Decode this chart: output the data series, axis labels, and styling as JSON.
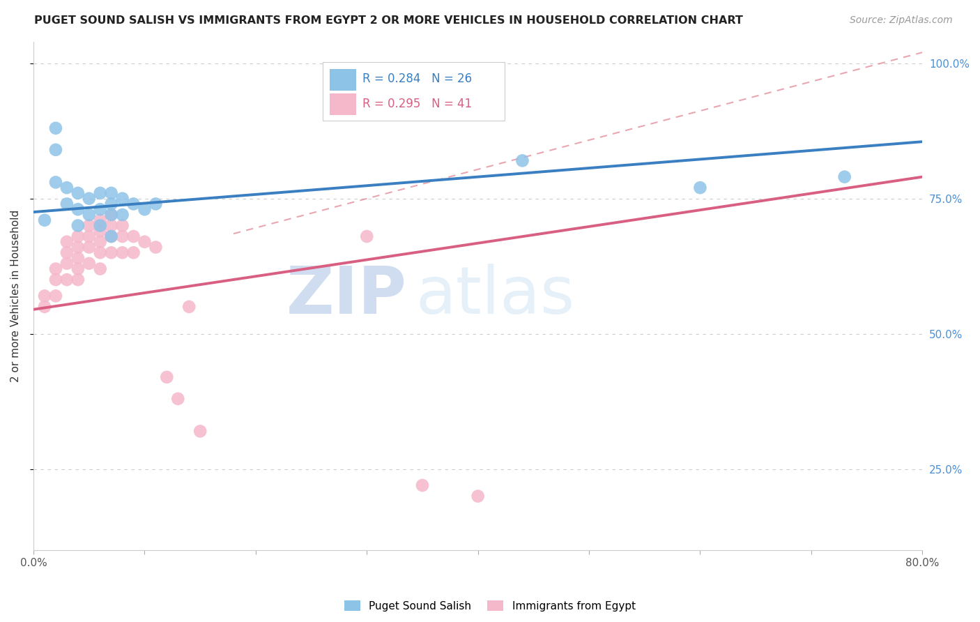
{
  "title": "PUGET SOUND SALISH VS IMMIGRANTS FROM EGYPT 2 OR MORE VEHICLES IN HOUSEHOLD CORRELATION CHART",
  "source": "Source: ZipAtlas.com",
  "ylabel": "2 or more Vehicles in Household",
  "xlim": [
    0.0,
    0.8
  ],
  "ylim": [
    0.1,
    1.04
  ],
  "xticks": [
    0.0,
    0.1,
    0.2,
    0.3,
    0.4,
    0.5,
    0.6,
    0.7,
    0.8
  ],
  "xticklabels": [
    "0.0%",
    "",
    "",
    "",
    "",
    "",
    "",
    "",
    "80.0%"
  ],
  "yticks": [
    0.25,
    0.5,
    0.75,
    1.0
  ],
  "yticklabels": [
    "25.0%",
    "50.0%",
    "75.0%",
    "100.0%"
  ],
  "blue_R": 0.284,
  "blue_N": 26,
  "pink_R": 0.295,
  "pink_N": 41,
  "blue_color": "#8ec3e8",
  "pink_color": "#f5b8cb",
  "blue_line_color": "#3a7fc1",
  "pink_line_color": "#d95f82",
  "dash_line_color": "#e08090",
  "watermark_zip": "ZIP",
  "watermark_atlas": "atlas",
  "blue_points_x": [
    0.01,
    0.02,
    0.02,
    0.02,
    0.03,
    0.03,
    0.04,
    0.04,
    0.04,
    0.05,
    0.05,
    0.06,
    0.06,
    0.06,
    0.07,
    0.07,
    0.07,
    0.07,
    0.08,
    0.08,
    0.09,
    0.1,
    0.11,
    0.44,
    0.6,
    0.73
  ],
  "blue_points_y": [
    0.71,
    0.88,
    0.84,
    0.78,
    0.77,
    0.74,
    0.76,
    0.73,
    0.7,
    0.75,
    0.72,
    0.76,
    0.73,
    0.7,
    0.76,
    0.74,
    0.72,
    0.68,
    0.75,
    0.72,
    0.74,
    0.73,
    0.74,
    0.82,
    0.77,
    0.79
  ],
  "pink_points_x": [
    0.01,
    0.01,
    0.02,
    0.02,
    0.02,
    0.03,
    0.03,
    0.03,
    0.03,
    0.04,
    0.04,
    0.04,
    0.04,
    0.04,
    0.05,
    0.05,
    0.05,
    0.05,
    0.06,
    0.06,
    0.06,
    0.06,
    0.06,
    0.07,
    0.07,
    0.07,
    0.07,
    0.08,
    0.08,
    0.08,
    0.09,
    0.09,
    0.1,
    0.11,
    0.12,
    0.13,
    0.14,
    0.15,
    0.3,
    0.35,
    0.4
  ],
  "pink_points_y": [
    0.57,
    0.55,
    0.62,
    0.6,
    0.57,
    0.67,
    0.65,
    0.63,
    0.6,
    0.68,
    0.66,
    0.64,
    0.62,
    0.6,
    0.7,
    0.68,
    0.66,
    0.63,
    0.71,
    0.69,
    0.67,
    0.65,
    0.62,
    0.72,
    0.7,
    0.68,
    0.65,
    0.7,
    0.68,
    0.65,
    0.68,
    0.65,
    0.67,
    0.66,
    0.42,
    0.38,
    0.55,
    0.32,
    0.68,
    0.22,
    0.2
  ],
  "blue_line_x0": 0.0,
  "blue_line_y0": 0.725,
  "blue_line_x1": 0.8,
  "blue_line_y1": 0.855,
  "pink_line_x0": 0.0,
  "pink_line_y0": 0.545,
  "pink_line_x1": 0.8,
  "pink_line_y1": 0.79,
  "dash_line_x0": 0.18,
  "dash_line_y0": 0.685,
  "dash_line_x1": 0.8,
  "dash_line_y1": 1.02
}
